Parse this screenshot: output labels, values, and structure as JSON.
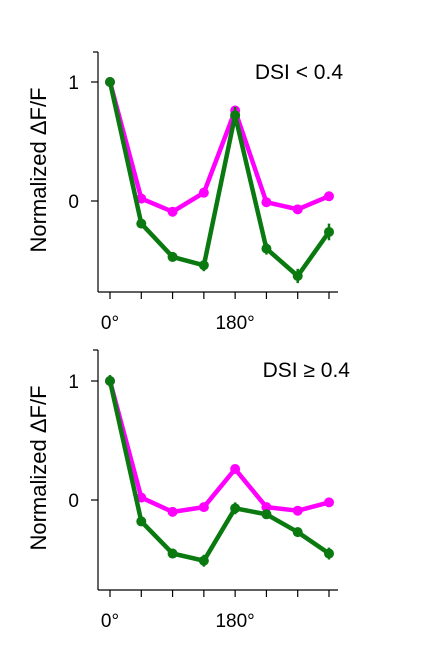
{
  "colors": {
    "magenta": "#ff00ff",
    "green": "#0a7a10"
  },
  "chart_data": [
    {
      "type": "line",
      "annotation": "DSI < 0.4",
      "ylabel": "Normalized ΔF/F",
      "xlabel": "",
      "x": [
        0,
        45,
        90,
        135,
        180,
        225,
        270,
        315
      ],
      "x_tick_labels": [
        {
          "x": 0,
          "label": "0°"
        },
        {
          "x": 180,
          "label": "180°"
        }
      ],
      "y_tick_labels": [
        {
          "y": 1,
          "label": "1"
        },
        {
          "y": 0,
          "label": "0"
        }
      ],
      "ylim": [
        -0.77,
        1.26
      ],
      "xlim": [
        -15,
        330
      ],
      "grid": false,
      "legend": "none",
      "series": [
        {
          "color_key": "magenta",
          "values": [
            1.0,
            0.02,
            -0.09,
            0.07,
            0.76,
            -0.01,
            -0.07,
            0.04
          ],
          "err": [
            0.03,
            0.02,
            0.02,
            0.02,
            0.04,
            0.02,
            0.02,
            0.02
          ]
        },
        {
          "color_key": "green",
          "values": [
            1.0,
            -0.19,
            -0.47,
            -0.54,
            0.72,
            -0.4,
            -0.63,
            -0.26
          ],
          "err": [
            0.04,
            0.03,
            0.04,
            0.05,
            0.07,
            0.05,
            0.06,
            0.07
          ]
        }
      ]
    },
    {
      "type": "line",
      "annotation": "DSI ≥ 0.4",
      "ylabel": "Normalized ΔF/F",
      "xlabel": "",
      "x": [
        0,
        45,
        90,
        135,
        180,
        225,
        270,
        315
      ],
      "x_tick_labels": [
        {
          "x": 0,
          "label": "0°"
        },
        {
          "x": 180,
          "label": "180°"
        }
      ],
      "y_tick_labels": [
        {
          "y": 1,
          "label": "1"
        },
        {
          "y": 0,
          "label": "0"
        }
      ],
      "ylim": [
        -0.77,
        1.26
      ],
      "xlim": [
        -15,
        330
      ],
      "grid": false,
      "legend": "none",
      "series": [
        {
          "color_key": "magenta",
          "values": [
            1.0,
            0.02,
            -0.1,
            -0.06,
            0.26,
            -0.06,
            -0.09,
            -0.02
          ],
          "err": [
            0.03,
            0.02,
            0.02,
            0.02,
            0.03,
            0.02,
            0.02,
            0.02
          ]
        },
        {
          "color_key": "green",
          "values": [
            1.0,
            -0.18,
            -0.45,
            -0.51,
            -0.07,
            -0.12,
            -0.27,
            -0.45
          ],
          "err": [
            0.05,
            0.03,
            0.04,
            0.05,
            0.05,
            0.03,
            0.04,
            0.05
          ]
        }
      ]
    }
  ]
}
